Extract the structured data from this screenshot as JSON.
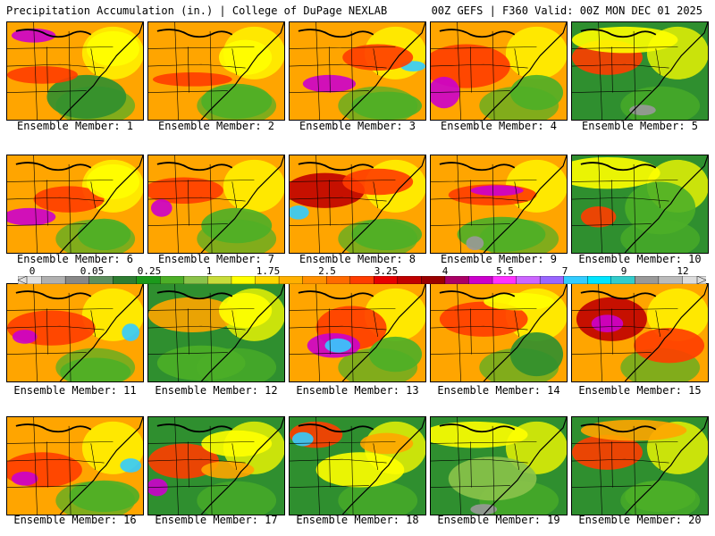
{
  "header": {
    "left": "Precipitation Accumulation (in.) | College of DuPage NEXLAB",
    "right": "00Z GEFS | F360 Valid: 00Z MON DEC 01 2025"
  },
  "members": [
    "Ensemble Member: 1",
    "Ensemble Member: 2",
    "Ensemble Member: 3",
    "Ensemble Member: 4",
    "Ensemble Member: 5",
    "Ensemble Member: 6",
    "Ensemble Member: 7",
    "Ensemble Member: 8",
    "Ensemble Member: 9",
    "Ensemble Member: 10",
    "Ensemble Member: 11",
    "Ensemble Member: 12",
    "Ensemble Member: 13",
    "Ensemble Member: 14",
    "Ensemble Member: 15",
    "Ensemble Member: 16",
    "Ensemble Member: 17",
    "Ensemble Member: 18",
    "Ensemble Member: 19",
    "Ensemble Member: 20"
  ],
  "colorbar": {
    "labels": [
      "0",
      "0.05",
      "0.25",
      "1",
      "1.75",
      "2.5",
      "3.25",
      "4",
      "5.5",
      "7",
      "9",
      "12"
    ],
    "colors": [
      "#e0e0e0",
      "#b0b0b0",
      "#888888",
      "#5e8f5e",
      "#2e7d32",
      "#1b9a1b",
      "#4caf27",
      "#8bc34a",
      "#c8dc3a",
      "#ffff00",
      "#ffd700",
      "#ffb000",
      "#ff9000",
      "#ff6a00",
      "#ff3d00",
      "#e60000",
      "#c00000",
      "#9a0000",
      "#aa0066",
      "#cc00cc",
      "#ff33ff",
      "#cc66ff",
      "#9966ff",
      "#33ccff",
      "#00e5ff",
      "#33cccc",
      "#999999",
      "#bbbbbb",
      "#dddddd"
    ]
  },
  "map_colors": {
    "lowgreen": "#2f8f2f",
    "green": "#4caf27",
    "lightgreen": "#8bc34a",
    "yellow": "#ffff00",
    "gold": "#ffd700",
    "orange": "#ffa500",
    "red": "#ff3d00",
    "darkred": "#c00000",
    "magenta": "#cc00cc",
    "cyan": "#33ccff",
    "gray": "#999999"
  }
}
